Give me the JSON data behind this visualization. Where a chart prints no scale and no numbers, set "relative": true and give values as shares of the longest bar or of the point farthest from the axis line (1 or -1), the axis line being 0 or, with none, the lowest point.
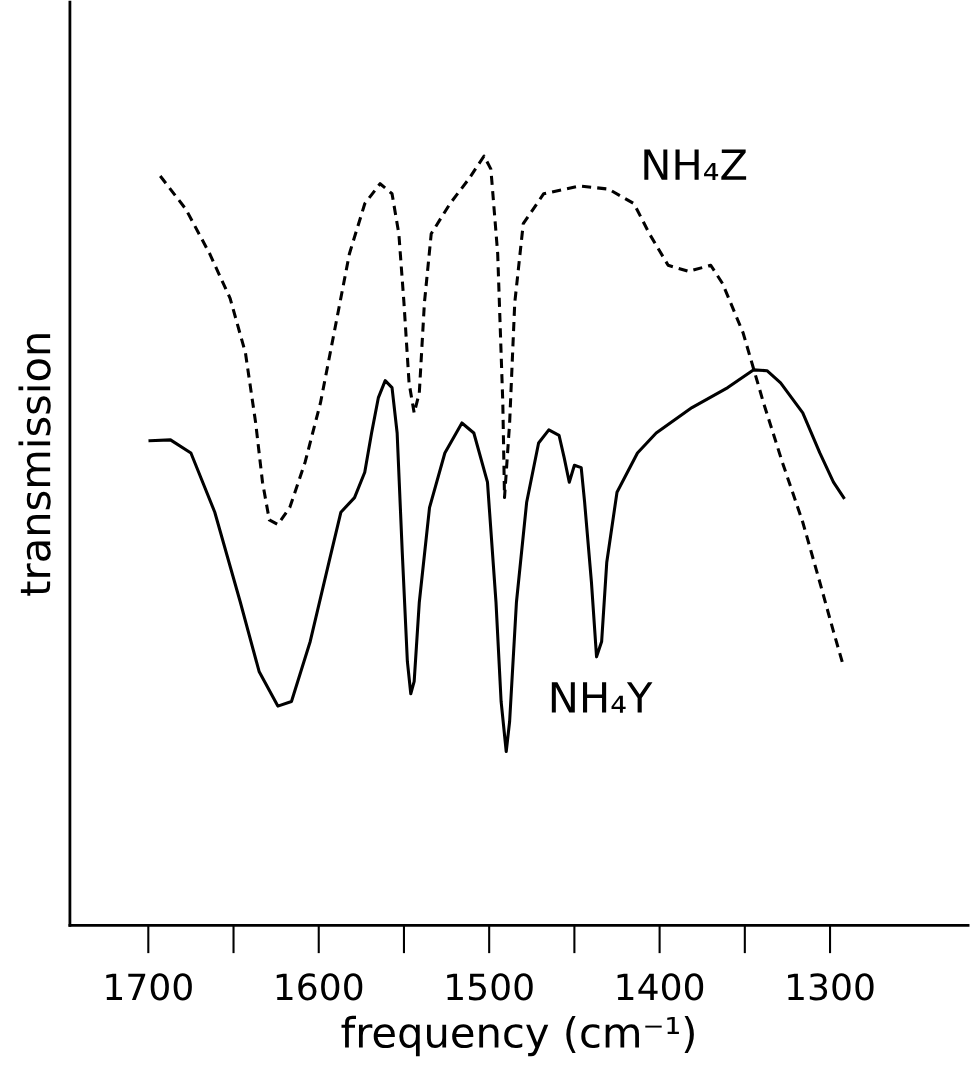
{
  "chart_data": {
    "type": "line",
    "xlabel": "frequency (cm⁻¹)",
    "ylabel": "transmission",
    "relative": true,
    "tick_labels": "x",
    "grid": false,
    "legend": false,
    "marker": "none",
    "xlim": [
      1746,
      1219
    ],
    "xticks": [
      1700,
      1600,
      1500,
      1400,
      1300
    ],
    "series": [
      {
        "name": "NH₄Z",
        "color": "#000000",
        "line_style": "dashed",
        "x": [
          1693,
          1678,
          1664,
          1652,
          1643,
          1637,
          1633,
          1629,
          1624,
          1617,
          1608,
          1599,
          1591,
          1582,
          1573,
          1564,
          1557,
          1553,
          1550,
          1547,
          1544,
          1541,
          1538,
          1534,
          1523,
          1512,
          1503,
          1499,
          1495,
          1492,
          1491,
          1488,
          1485,
          1480,
          1468,
          1447,
          1430,
          1415,
          1406,
          1395,
          1383,
          1370,
          1363,
          1351,
          1339,
          1328,
          1316,
          1306,
          1298,
          1292
        ],
        "values": [
          0.974,
          0.931,
          0.873,
          0.815,
          0.744,
          0.653,
          0.576,
          0.527,
          0.521,
          0.543,
          0.602,
          0.679,
          0.77,
          0.873,
          0.938,
          0.964,
          0.951,
          0.899,
          0.809,
          0.705,
          0.666,
          0.692,
          0.809,
          0.899,
          0.938,
          0.97,
          1.0,
          0.983,
          0.873,
          0.679,
          0.556,
          0.653,
          0.809,
          0.912,
          0.951,
          0.961,
          0.957,
          0.938,
          0.899,
          0.858,
          0.85,
          0.858,
          0.834,
          0.77,
          0.679,
          0.602,
          0.524,
          0.446,
          0.382,
          0.336
        ]
      },
      {
        "name": "NH₄Y",
        "color": "#000000",
        "line_style": "solid",
        "x": [
          1699,
          1687,
          1675,
          1661,
          1646,
          1635,
          1624,
          1616,
          1605,
          1594,
          1587,
          1579,
          1573,
          1569,
          1565,
          1561,
          1557,
          1554,
          1551,
          1548,
          1546,
          1544,
          1541,
          1535,
          1526,
          1516,
          1509,
          1501,
          1496,
          1493,
          1490,
          1488,
          1484,
          1478,
          1471,
          1465,
          1459,
          1456,
          1453,
          1450,
          1446,
          1444,
          1440,
          1437,
          1434,
          1431,
          1425,
          1413,
          1402,
          1381,
          1360,
          1345,
          1337,
          1329,
          1316,
          1306,
          1298,
          1292
        ],
        "values": [
          0.63,
          0.631,
          0.614,
          0.537,
          0.42,
          0.33,
          0.285,
          0.291,
          0.369,
          0.472,
          0.537,
          0.556,
          0.589,
          0.64,
          0.686,
          0.708,
          0.699,
          0.64,
          0.485,
          0.343,
          0.301,
          0.317,
          0.42,
          0.543,
          0.614,
          0.653,
          0.64,
          0.576,
          0.42,
          0.291,
          0.226,
          0.265,
          0.42,
          0.55,
          0.627,
          0.644,
          0.637,
          0.608,
          0.576,
          0.598,
          0.595,
          0.55,
          0.446,
          0.349,
          0.369,
          0.472,
          0.563,
          0.614,
          0.64,
          0.673,
          0.699,
          0.722,
          0.721,
          0.705,
          0.666,
          0.614,
          0.576,
          0.556
        ]
      }
    ]
  }
}
